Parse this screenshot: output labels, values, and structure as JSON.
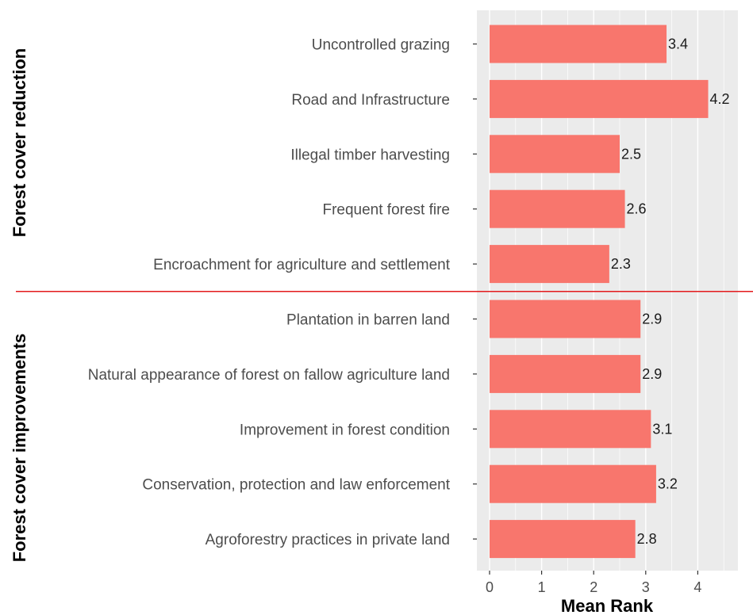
{
  "chart_data": {
    "type": "bar",
    "orientation": "horizontal",
    "groups": [
      {
        "label": "Forest cover  reduction",
        "categories": [
          "Uncontrolled grazing",
          "Road and Infrastructure",
          "Illegal timber harvesting",
          "Frequent forest fire",
          "Encroachment for agriculture and settlement"
        ],
        "values": [
          3.4,
          4.2,
          2.5,
          2.6,
          2.3
        ],
        "value_labels": [
          "3.4",
          "4.2",
          "2.5",
          "2.6",
          "2.3"
        ]
      },
      {
        "label": "Forest cover improvements",
        "categories": [
          "Plantation in barren land",
          "Natural appearance of forest on fallow agriculture land",
          "Improvement in forest condition",
          "Conservation, protection and law enforcement",
          "Agroforestry practices in private land"
        ],
        "values": [
          2.9,
          2.9,
          3.1,
          3.2,
          2.8
        ],
        "value_labels": [
          "2.9",
          "2.9",
          "3.1",
          "3.2",
          "2.8"
        ]
      }
    ],
    "xlabel": "Mean Rank",
    "xlim": [
      -0.2,
      4.6
    ],
    "xticks": [
      0,
      1,
      2,
      3,
      4
    ],
    "xtick_labels": [
      "0",
      "1",
      "2",
      "3",
      "4"
    ],
    "grid": true,
    "colors": {
      "bar": "#F8766D",
      "panel": "#EBEBEB",
      "grid": "#FFFFFF",
      "divider": "#E31A1C"
    }
  }
}
